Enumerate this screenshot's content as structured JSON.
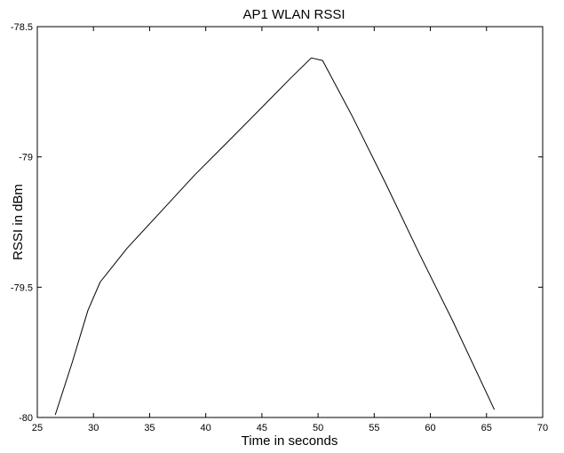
{
  "chart_data": {
    "type": "line",
    "title": "AP1 WLAN RSSI",
    "xlabel": "Time in seconds",
    "ylabel": "RSSI in dBm",
    "xlim": [
      25,
      70
    ],
    "ylim": [
      -80,
      -78.5
    ],
    "xticks": [
      25,
      30,
      35,
      40,
      45,
      50,
      55,
      60,
      65,
      70
    ],
    "yticks": [
      -80,
      -79.5,
      -79,
      -78.5
    ],
    "grid": false,
    "legend": "none",
    "series": [
      {
        "color": "#000000",
        "x": [
          26.6,
          28.1,
          29.5,
          30.6,
          33.0,
          36.0,
          39.0,
          42.0,
          45.0,
          47.5,
          49.4,
          50.4,
          53.0,
          56.0,
          59.0,
          62.0,
          65.7
        ],
        "y": [
          -79.99,
          -79.79,
          -79.59,
          -79.48,
          -79.35,
          -79.21,
          -79.07,
          -78.94,
          -78.81,
          -78.7,
          -78.62,
          -78.63,
          -78.84,
          -79.1,
          -79.37,
          -79.63,
          -79.97
        ]
      }
    ]
  }
}
